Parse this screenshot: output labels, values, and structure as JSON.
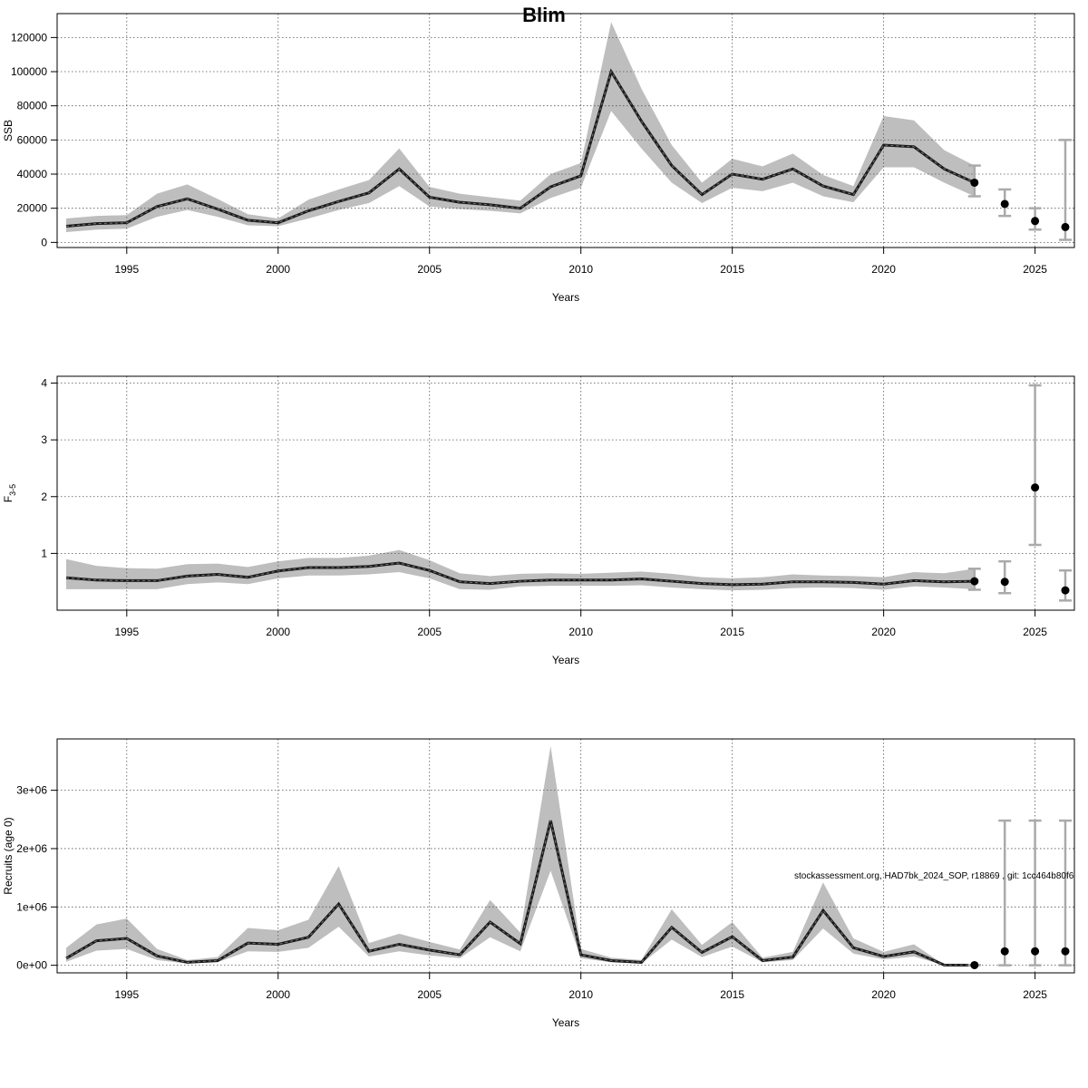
{
  "footnote": "stockassessment.org, HAD7bk_2024_SOP, r18869 , git: 1cc464b80f6",
  "colors": {
    "band": "#bebebe",
    "line": "#1a1a1a",
    "grid": "#555555",
    "errorbar": "#aaaaaa"
  },
  "chart_data": [
    {
      "type": "line",
      "title": "Blim",
      "xlabel": "Years",
      "ylabel": "SSB",
      "xlim": [
        1992.7,
        2026.3
      ],
      "ylim": [
        -3000,
        134000
      ],
      "xticks": [
        1995,
        2000,
        2005,
        2010,
        2015,
        2020,
        2025
      ],
      "yticks": [
        0,
        20000,
        40000,
        60000,
        80000,
        100000,
        120000
      ],
      "ytick_labels": [
        "0",
        "20000",
        "40000",
        "60000",
        "80000",
        "100000",
        "120000"
      ],
      "grid": true,
      "x": [
        1993,
        1994,
        1995,
        1996,
        1997,
        1998,
        1999,
        2000,
        2001,
        2002,
        2003,
        2004,
        2005,
        2006,
        2007,
        2008,
        2009,
        2010,
        2011,
        2012,
        2013,
        2014,
        2015,
        2016,
        2017,
        2018,
        2019,
        2020,
        2021,
        2022,
        2023
      ],
      "values": [
        9500,
        11000,
        11500,
        21000,
        25500,
        19500,
        13000,
        11500,
        18500,
        24000,
        29000,
        43000,
        26500,
        23500,
        22000,
        20000,
        32500,
        39000,
        100000,
        71000,
        45000,
        28000,
        40000,
        37000,
        43000,
        33000,
        28000,
        57000,
        56000,
        43000,
        35000
      ],
      "lower": [
        6000,
        7500,
        8000,
        15000,
        19000,
        15000,
        10000,
        9500,
        14000,
        19000,
        23000,
        33000,
        21000,
        19500,
        18500,
        17000,
        26000,
        32000,
        77000,
        55000,
        35000,
        23000,
        32000,
        30000,
        35000,
        27000,
        23500,
        44000,
        44000,
        35000,
        27000
      ],
      "upper": [
        14000,
        15500,
        16000,
        28500,
        34000,
        25500,
        16500,
        14000,
        25000,
        31000,
        36500,
        55000,
        32500,
        28500,
        26500,
        24500,
        40000,
        46500,
        129000,
        90000,
        57000,
        35000,
        49000,
        44500,
        52000,
        39500,
        33000,
        74000,
        71500,
        54000,
        45000
      ],
      "forecast": [
        {
          "x": 2023,
          "value": 35000,
          "lower": 27000,
          "upper": 45000
        },
        {
          "x": 2024,
          "value": 22500,
          "lower": 15500,
          "upper": 31000
        },
        {
          "x": 2025,
          "value": 12500,
          "lower": 7500,
          "upper": 20000
        },
        {
          "x": 2026,
          "value": 9000,
          "lower": 1500,
          "upper": 60000
        }
      ]
    },
    {
      "type": "line",
      "xlabel": "Years",
      "ylabel": "F",
      "ylabel_sub": "3-5",
      "xlim": [
        1992.7,
        2026.3
      ],
      "ylim": [
        0,
        4.12
      ],
      "xticks": [
        1995,
        2000,
        2005,
        2010,
        2015,
        2020,
        2025
      ],
      "yticks": [
        1,
        2,
        3,
        4
      ],
      "ytick_labels": [
        "1",
        "2",
        "3",
        "4"
      ],
      "grid": true,
      "x": [
        1993,
        1994,
        1995,
        1996,
        1997,
        1998,
        1999,
        2000,
        2001,
        2002,
        2003,
        2004,
        2005,
        2006,
        2007,
        2008,
        2009,
        2010,
        2011,
        2012,
        2013,
        2014,
        2015,
        2016,
        2017,
        2018,
        2019,
        2020,
        2021,
        2022,
        2023
      ],
      "values": [
        0.57,
        0.53,
        0.52,
        0.52,
        0.6,
        0.63,
        0.58,
        0.69,
        0.75,
        0.75,
        0.77,
        0.83,
        0.7,
        0.5,
        0.47,
        0.51,
        0.53,
        0.53,
        0.53,
        0.55,
        0.51,
        0.47,
        0.45,
        0.46,
        0.5,
        0.5,
        0.49,
        0.46,
        0.52,
        0.5,
        0.51
      ],
      "lower": [
        0.37,
        0.37,
        0.37,
        0.37,
        0.46,
        0.49,
        0.46,
        0.56,
        0.61,
        0.61,
        0.63,
        0.67,
        0.56,
        0.37,
        0.36,
        0.42,
        0.43,
        0.43,
        0.43,
        0.44,
        0.4,
        0.37,
        0.35,
        0.36,
        0.39,
        0.4,
        0.39,
        0.36,
        0.42,
        0.4,
        0.37
      ],
      "upper": [
        0.9,
        0.78,
        0.74,
        0.73,
        0.81,
        0.82,
        0.76,
        0.86,
        0.92,
        0.92,
        0.96,
        1.06,
        0.88,
        0.65,
        0.6,
        0.64,
        0.65,
        0.64,
        0.66,
        0.68,
        0.64,
        0.58,
        0.56,
        0.58,
        0.63,
        0.61,
        0.6,
        0.58,
        0.67,
        0.65,
        0.73
      ],
      "forecast": [
        {
          "x": 2023,
          "value": 0.51,
          "lower": 0.36,
          "upper": 0.73
        },
        {
          "x": 2024,
          "value": 0.5,
          "lower": 0.3,
          "upper": 0.86
        },
        {
          "x": 2025,
          "value": 2.16,
          "lower": 1.15,
          "upper": 3.96
        },
        {
          "x": 2026,
          "value": 0.35,
          "lower": 0.17,
          "upper": 0.7
        }
      ]
    },
    {
      "type": "line",
      "xlabel": "Years",
      "ylabel": "Recruits (age 0)",
      "xlim": [
        1992.7,
        2026.3
      ],
      "ylim": [
        -130000,
        3880000
      ],
      "xticks": [
        1995,
        2000,
        2005,
        2010,
        2015,
        2020,
        2025
      ],
      "yticks": [
        0,
        1000000,
        2000000,
        3000000
      ],
      "ytick_labels": [
        "0e+00",
        "1e+06",
        "2e+06",
        "3e+06"
      ],
      "grid": true,
      "x": [
        1993,
        1994,
        1995,
        1996,
        1997,
        1998,
        1999,
        2000,
        2001,
        2002,
        2003,
        2004,
        2005,
        2006,
        2007,
        2008,
        2009,
        2010,
        2011,
        2012,
        2013,
        2014,
        2015,
        2016,
        2017,
        2018,
        2019,
        2020,
        2021,
        2022,
        2023
      ],
      "values": [
        120000,
        420000,
        460000,
        160000,
        50000,
        80000,
        380000,
        360000,
        480000,
        1050000,
        240000,
        360000,
        260000,
        180000,
        740000,
        370000,
        2480000,
        180000,
        80000,
        50000,
        650000,
        220000,
        490000,
        80000,
        140000,
        940000,
        300000,
        150000,
        230000,
        5000,
        3000
      ],
      "lower": [
        60000,
        250000,
        280000,
        90000,
        30000,
        50000,
        240000,
        230000,
        300000,
        660000,
        150000,
        240000,
        170000,
        120000,
        480000,
        240000,
        1620000,
        120000,
        50000,
        30000,
        440000,
        140000,
        320000,
        50000,
        90000,
        630000,
        200000,
        100000,
        150000,
        3000,
        1500
      ],
      "upper": [
        300000,
        700000,
        800000,
        280000,
        90000,
        140000,
        640000,
        600000,
        780000,
        1700000,
        380000,
        540000,
        400000,
        270000,
        1120000,
        560000,
        3760000,
        280000,
        130000,
        90000,
        960000,
        350000,
        740000,
        130000,
        230000,
        1420000,
        460000,
        230000,
        360000,
        9000,
        5000
      ],
      "forecast": [
        {
          "x": 2023,
          "value": 3000,
          "lower": 1500,
          "upper": 5000
        },
        {
          "x": 2024,
          "value": 240000,
          "lower": 0,
          "upper": 2480000
        },
        {
          "x": 2025,
          "value": 240000,
          "lower": 0,
          "upper": 2480000
        },
        {
          "x": 2026,
          "value": 240000,
          "lower": 0,
          "upper": 2480000
        }
      ]
    }
  ]
}
